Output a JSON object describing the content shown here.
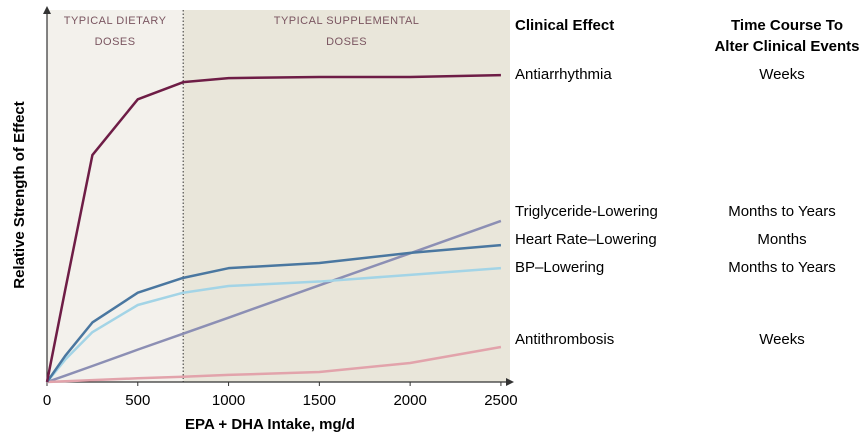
{
  "chart_data": {
    "type": "line",
    "x_label": "EPA + DHA Intake, mg/d",
    "y_label": "Relative Strength of Effect",
    "x": [
      0,
      100,
      250,
      500,
      750,
      1000,
      1500,
      2000,
      2500
    ],
    "xlim": [
      0,
      2550
    ],
    "xticks": [
      0,
      500,
      1000,
      1500,
      2000,
      2500
    ],
    "ylim": [
      0,
      100
    ],
    "regions": [
      {
        "lines": [
          "TYPICAL DIETARY",
          "DOSES"
        ],
        "start": 0,
        "color": "#f3f1ec"
      },
      {
        "lines": [
          "TYPICAL SUPPLEMENTAL",
          "DOSES"
        ],
        "start": 750,
        "color": "#e9e6da"
      }
    ],
    "effect_header": "Clinical Effect",
    "time_header_lines": [
      "Time Course To",
      "Alter Clinical Events"
    ],
    "series": [
      {
        "name": "Antiarrhythmia",
        "time_course": "Weeks",
        "color": "#6e1d46",
        "values": [
          0,
          24.7,
          61,
          76,
          80.6,
          81.7,
          82,
          82,
          82.5
        ]
      },
      {
        "name": "Triglyceride-Lowering",
        "time_course": "Months to Years",
        "color": "#8c8fb4",
        "values": [
          0,
          1.7,
          4.3,
          8.7,
          13,
          17.3,
          26,
          34.6,
          43.3
        ]
      },
      {
        "name": "Heart Rate–Lowering",
        "time_course": "Months",
        "color": "#4a77a0",
        "values": [
          0,
          7,
          16,
          24,
          28,
          30.6,
          32,
          34.7,
          36.8
        ]
      },
      {
        "name": "BP–Lowering",
        "time_course": "Months to Years",
        "color": "#a3d4e6",
        "values": [
          0,
          6,
          13.4,
          20.7,
          24,
          25.8,
          27,
          28.8,
          30.6
        ]
      },
      {
        "name": "Antithrombosis",
        "time_course": "Weeks",
        "color": "#e2a3ab",
        "values": [
          0,
          0.2,
          0.5,
          1,
          1.4,
          1.9,
          2.7,
          5.1,
          9.4
        ]
      }
    ]
  }
}
